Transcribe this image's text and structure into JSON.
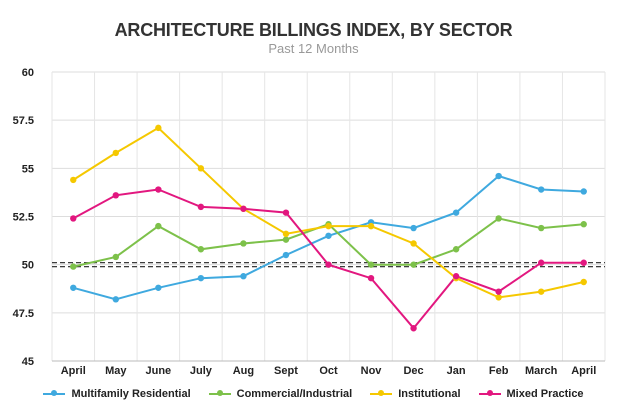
{
  "chart_data": {
    "type": "line",
    "title": "ARCHITECTURE BILLINGS INDEX, BY SECTOR",
    "subtitle": "Past 12 Months",
    "xlabel": "",
    "ylabel": "",
    "ylim": [
      45,
      60
    ],
    "y_ticks": [
      "45",
      "47.5",
      "50",
      "52.5",
      "55",
      "57.5",
      "60"
    ],
    "categories": [
      "April",
      "May",
      "June",
      "July",
      "Aug",
      "Sept",
      "Oct",
      "Nov",
      "Dec",
      "Jan",
      "Feb",
      "March",
      "April"
    ],
    "reference_line": 50,
    "grid": true,
    "legend_position": "bottom",
    "series": [
      {
        "name": "Multifamily Residential",
        "color": "#3fa9df",
        "values": [
          48.8,
          48.2,
          48.8,
          49.3,
          49.4,
          50.5,
          51.5,
          52.2,
          51.9,
          52.7,
          54.6,
          53.9,
          53.8
        ]
      },
      {
        "name": "Commercial/Industrial",
        "color": "#7dc14a",
        "values": [
          49.9,
          50.4,
          52.0,
          50.8,
          51.1,
          51.3,
          52.1,
          50.0,
          50.0,
          50.8,
          52.4,
          51.9,
          52.1
        ]
      },
      {
        "name": "Institutional",
        "color": "#f5c800",
        "values": [
          54.4,
          55.8,
          57.1,
          55.0,
          52.9,
          51.6,
          52.0,
          52.0,
          51.1,
          49.3,
          48.3,
          48.6,
          49.1
        ]
      },
      {
        "name": "Mixed Practice",
        "color": "#e2177f",
        "values": [
          52.4,
          53.6,
          53.9,
          53.0,
          52.9,
          52.7,
          50.0,
          49.3,
          46.7,
          49.4,
          48.6,
          50.1,
          50.1
        ]
      }
    ]
  }
}
